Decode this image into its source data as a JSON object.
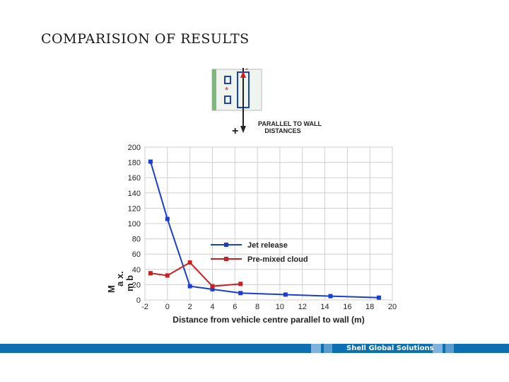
{
  "slide": {
    "title": "COMPARISION OF RESULTS"
  },
  "schematic": {
    "caption_line1": "PARALLEL TO WALL",
    "caption_line2": "DISTANCES",
    "plus_sign": "+",
    "minus_sign": "-",
    "colors": {
      "outline": "#1a3fcf",
      "arrow": "#cc1f1f",
      "wall": "#7fb77f",
      "star": "#cc1f1f"
    }
  },
  "footer": {
    "brand": "Shell Global Solutions",
    "colors": {
      "bar": "#0b6fb2",
      "light_block": "#7fb3de"
    }
  },
  "chart_data": {
    "type": "line",
    "title": "",
    "xlabel": "Distance from vehicle centre parallel to wall (m)",
    "ylabel": "M a x. ov er pr es su re (m b ar)",
    "ylabel_short": "M",
    "ylabel_mid": "a x.",
    "ylabel_tail": "m b",
    "xlim": [
      -2,
      20
    ],
    "ylim": [
      0,
      200
    ],
    "xticks": [
      -2,
      0,
      2,
      4,
      6,
      8,
      10,
      12,
      14,
      16,
      18,
      20
    ],
    "yticks": [
      0,
      20,
      40,
      60,
      80,
      100,
      120,
      140,
      160,
      180,
      200
    ],
    "grid": true,
    "legend_position": "center",
    "series": [
      {
        "name": "Jet release",
        "color": "#1a3fcf",
        "x": [
          -1.5,
          0,
          2,
          4,
          6.5,
          10.5,
          14.5,
          18.8
        ],
        "y": [
          181,
          106,
          18,
          14,
          9,
          7,
          5,
          3
        ]
      },
      {
        "name": "Pre-mixed cloud",
        "color": "#cc1f1f",
        "x": [
          -1.5,
          0,
          2,
          4,
          6.5
        ],
        "y": [
          35,
          32,
          49,
          18,
          21
        ]
      }
    ]
  }
}
